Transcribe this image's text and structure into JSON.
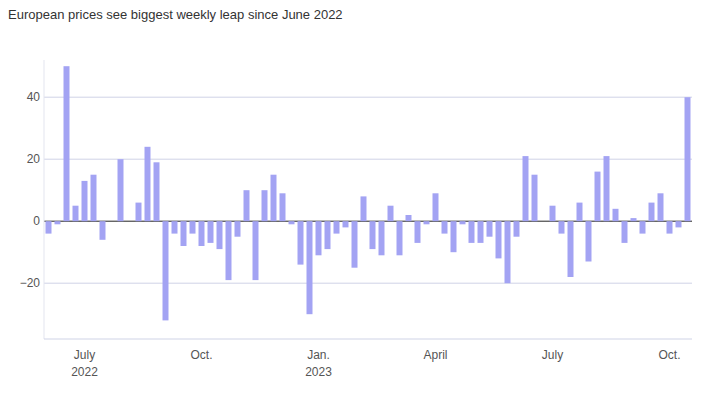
{
  "chart_data": {
    "type": "bar",
    "title": "European prices see biggest weekly leap since June 2022",
    "categories": [
      null,
      null,
      null,
      null,
      "July 2022",
      null,
      null,
      null,
      null,
      null,
      null,
      null,
      null,
      null,
      null,
      null,
      null,
      "Oct.",
      null,
      null,
      null,
      null,
      null,
      null,
      null,
      null,
      null,
      null,
      null,
      null,
      "Jan. 2023",
      null,
      null,
      null,
      null,
      null,
      null,
      null,
      null,
      null,
      null,
      null,
      null,
      "April",
      null,
      null,
      null,
      null,
      null,
      null,
      null,
      null,
      null,
      null,
      null,
      null,
      "July",
      null,
      null,
      null,
      null,
      null,
      null,
      null,
      null,
      null,
      null,
      null,
      null,
      "Oct.",
      null,
      null
    ],
    "values": [
      -4,
      -1,
      50,
      5,
      13,
      15,
      -6,
      0,
      20,
      0,
      6,
      24,
      19,
      -32,
      -4,
      -8,
      -4,
      -8,
      -7,
      -9,
      -19,
      -5,
      10,
      -19,
      10,
      15,
      9,
      -1,
      -14,
      -30,
      -11,
      -9,
      -4,
      -2,
      -15,
      8,
      -9,
      -11,
      5,
      -11,
      2,
      -7,
      -1,
      9,
      -4,
      -10,
      -1,
      -7,
      -7,
      -5,
      -12,
      -20,
      -5,
      21,
      15,
      0,
      5,
      -4,
      -18,
      6,
      -13,
      16,
      21,
      4,
      -7,
      1,
      -4,
      6,
      9,
      -4,
      -2,
      40
    ],
    "color": "#a3a3f3",
    "ylim": [
      -38,
      52
    ],
    "yticks": [
      {
        "value": -20,
        "label": "−20"
      },
      0,
      20,
      40
    ],
    "grid": true
  }
}
